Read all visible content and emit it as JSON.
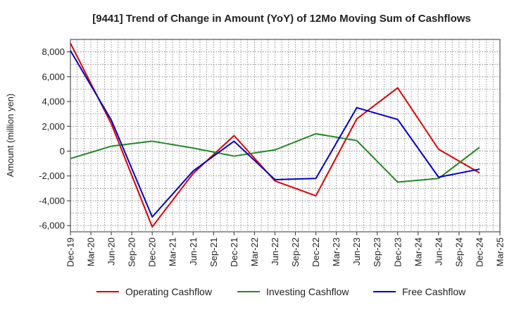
{
  "chart_data": {
    "type": "line",
    "title": "[9441]  Trend of Change in Amount (YoY) of 12Mo Moving Sum of Cashflows",
    "xlabel": "",
    "ylabel": "Amount (million yen)",
    "ylim": [
      -6500,
      9000
    ],
    "yticks": [
      -6000,
      -4000,
      -2000,
      0,
      2000,
      4000,
      6000,
      8000
    ],
    "ytick_labels": [
      "-6,000",
      "-4,000",
      "-2,000",
      "0",
      "2,000",
      "4,000",
      "6,000",
      "8,000"
    ],
    "categories": [
      "Dec-19",
      "Mar-20",
      "Jun-20",
      "Sep-20",
      "Dec-20",
      "Mar-21",
      "Jun-21",
      "Sep-21",
      "Dec-21",
      "Mar-22",
      "Jun-22",
      "Sep-22",
      "Dec-22",
      "Mar-23",
      "Jun-23",
      "Sep-23",
      "Dec-23",
      "Mar-24",
      "Jun-24",
      "Sep-24",
      "Dec-24",
      "Mar-25"
    ],
    "grid": true,
    "legend_position": "bottom",
    "series": [
      {
        "name": "Operating Cashflow",
        "color": "#dd0000",
        "points": [
          [
            0,
            8700
          ],
          [
            2,
            2200
          ],
          [
            4,
            -6100
          ],
          [
            6,
            -1800
          ],
          [
            8,
            1250
          ],
          [
            10,
            -2400
          ],
          [
            12,
            -3600
          ],
          [
            14,
            2600
          ],
          [
            16,
            5100
          ],
          [
            18,
            150
          ],
          [
            20,
            -1750
          ]
        ]
      },
      {
        "name": "Investing Cashflow",
        "color": "#228822",
        "points": [
          [
            0,
            -600
          ],
          [
            2,
            400
          ],
          [
            4,
            800
          ],
          [
            6,
            250
          ],
          [
            8,
            -400
          ],
          [
            10,
            100
          ],
          [
            12,
            1400
          ],
          [
            14,
            850
          ],
          [
            16,
            -2500
          ],
          [
            18,
            -2200
          ],
          [
            20,
            300
          ]
        ]
      },
      {
        "name": "Free Cashflow",
        "color": "#0000cc",
        "points": [
          [
            0,
            8100
          ],
          [
            2,
            2500
          ],
          [
            4,
            -5300
          ],
          [
            6,
            -1600
          ],
          [
            8,
            800
          ],
          [
            10,
            -2300
          ],
          [
            12,
            -2200
          ],
          [
            14,
            3500
          ],
          [
            16,
            2550
          ],
          [
            18,
            -2100
          ],
          [
            20,
            -1450
          ]
        ]
      }
    ]
  }
}
